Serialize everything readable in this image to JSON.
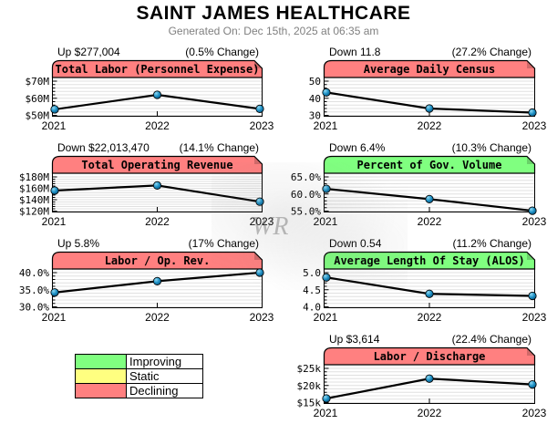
{
  "page": {
    "title": "SAINT JAMES HEALTHCARE",
    "subtitle": "Generated On: Dec 15th, 2025 at 06:35 am"
  },
  "colors": {
    "improving": "#80FF80",
    "static": "#FFFF80",
    "declining": "#FF8080",
    "marker_blue": "#1B8FC4",
    "grid_line": "#E0E0E0",
    "line_black": "#000000"
  },
  "legend": {
    "items": [
      {
        "label": "Improving",
        "color": "#80FF80"
      },
      {
        "label": "Static",
        "color": "#FFFF80"
      },
      {
        "label": "Declining",
        "color": "#FF8080"
      }
    ]
  },
  "watermark": {
    "text": "WR"
  },
  "chart_data": [
    {
      "type": "line",
      "title": "Total Labor (Personnel Expense)",
      "header_left": "Up $277,004",
      "header_right": "(0.5% Change)",
      "status": "declining",
      "x": [
        "2021",
        "2022",
        "2023"
      ],
      "values": [
        53.5,
        62.0,
        53.8
      ],
      "y_ticks": [
        {
          "label": "$70M",
          "value": 70
        },
        {
          "label": "$60M",
          "value": 60
        },
        {
          "label": "$50M",
          "value": 50
        }
      ],
      "ylim": [
        50,
        70
      ]
    },
    {
      "type": "line",
      "title": "Average Daily Census",
      "header_left": "Down 11.8",
      "header_right": "(27.2% Change)",
      "status": "declining",
      "x": [
        "2021",
        "2022",
        "2023"
      ],
      "values": [
        43.4,
        34.0,
        31.6
      ],
      "y_ticks": [
        {
          "label": "50",
          "value": 50
        },
        {
          "label": "40",
          "value": 40
        },
        {
          "label": "30",
          "value": 30
        }
      ],
      "ylim": [
        30,
        50
      ]
    },
    {
      "type": "line",
      "title": "Total Operating Revenue",
      "header_left": "Down $22,013,470",
      "header_right": "(14.1% Change)",
      "status": "declining",
      "x": [
        "2021",
        "2022",
        "2023"
      ],
      "values": [
        156.0,
        165.0,
        136.5
      ],
      "y_ticks": [
        {
          "label": "$180M",
          "value": 180
        },
        {
          "label": "$160M",
          "value": 160
        },
        {
          "label": "$140M",
          "value": 140
        },
        {
          "label": "$120M",
          "value": 120
        }
      ],
      "ylim": [
        120,
        180
      ]
    },
    {
      "type": "line",
      "title": "Percent of Gov. Volume",
      "header_left": "Down 6.4%",
      "header_right": "(10.3% Change)",
      "status": "improving",
      "x": [
        "2021",
        "2022",
        "2023"
      ],
      "values": [
        61.5,
        58.5,
        55.1
      ],
      "y_ticks": [
        {
          "label": "65.0%",
          "value": 65
        },
        {
          "label": "60.0%",
          "value": 60
        },
        {
          "label": "55.0%",
          "value": 55
        }
      ],
      "ylim": [
        55,
        65
      ]
    },
    {
      "type": "line",
      "title": "Labor / Op. Rev.",
      "header_left": "Up 5.8%",
      "header_right": "(17% Change)",
      "status": "declining",
      "x": [
        "2021",
        "2022",
        "2023"
      ],
      "values": [
        34.2,
        37.5,
        40.0
      ],
      "y_ticks": [
        {
          "label": "40.0%",
          "value": 40
        },
        {
          "label": "35.0%",
          "value": 35
        },
        {
          "label": "30.0%",
          "value": 30
        }
      ],
      "ylim": [
        30,
        40
      ]
    },
    {
      "type": "line",
      "title": "Average Length Of Stay (ALOS)",
      "header_left": "Down 0.54",
      "header_right": "(11.2% Change)",
      "status": "improving",
      "x": [
        "2021",
        "2022",
        "2023"
      ],
      "values": [
        4.86,
        4.38,
        4.32
      ],
      "y_ticks": [
        {
          "label": "5.0",
          "value": 5.0
        },
        {
          "label": "4.5",
          "value": 4.5
        },
        {
          "label": "4.0",
          "value": 4.0
        }
      ],
      "ylim": [
        4.0,
        5.0
      ]
    },
    {
      "type": "line",
      "title": "Labor / Discharge",
      "header_left": "Up $3,614",
      "header_right": "(22.4% Change)",
      "status": "declining",
      "x": [
        "2021",
        "2022",
        "2023"
      ],
      "values": [
        16.2,
        22.0,
        20.3
      ],
      "y_ticks": [
        {
          "label": "$25k",
          "value": 25
        },
        {
          "label": "$20k",
          "value": 20
        },
        {
          "label": "$15k",
          "value": 15
        }
      ],
      "ylim": [
        15,
        25
      ]
    }
  ]
}
